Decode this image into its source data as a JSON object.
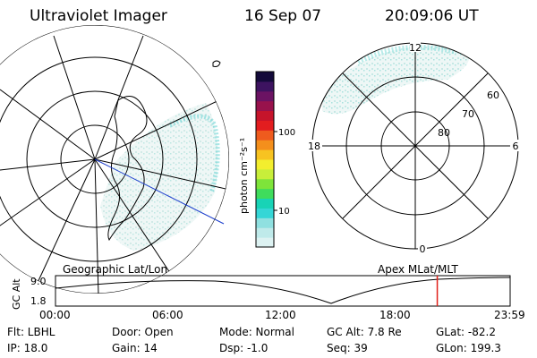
{
  "header": {
    "instrument": "Ultraviolet Imager",
    "date": "16 Sep 07",
    "time": "20:09:06 UT"
  },
  "colorbar": {
    "unit_label": "photon cm⁻²s⁻¹",
    "ticks": [
      "100",
      "10"
    ],
    "colors": [
      "#ddf2f2",
      "#bfeaea",
      "#8fe0e0",
      "#35d6d6",
      "#18d3b6",
      "#3fdc5c",
      "#7ee43a",
      "#c8ee3a",
      "#f3ee2e",
      "#f7c321",
      "#f48f1c",
      "#ef5b1e",
      "#e31d1f",
      "#c6142b",
      "#98124c",
      "#6b1363",
      "#3d1360",
      "#140a3a"
    ]
  },
  "maps": {
    "left_title": "Geographic Lat/Lon",
    "right_title": "Apex  MLat/MLT",
    "right_mlt_labels": {
      "top": "12",
      "left": "18",
      "right": "6",
      "bottom": "0"
    },
    "right_lat_labels": [
      "60",
      "70",
      "80"
    ]
  },
  "altitude_plot": {
    "ylabel": "GC Alt",
    "yticks": [
      "9.0",
      "1.8"
    ],
    "xticks": [
      "00:00",
      "06:00",
      "12:00",
      "18:00",
      "23:59"
    ],
    "current_time_fraction": 0.8397
  },
  "footer": {
    "filter": "Flt: LBHL",
    "ip": "IP: 18.0",
    "door": "Door: Open",
    "gain": "Gain: 14",
    "mode": "Mode: Normal",
    "dsp": "Dsp:   -1.0",
    "gc_alt": "GC Alt: 7.8 Re",
    "seq": "Seq: 39",
    "glat": "GLat: -82.2",
    "glon": "GLon: 199.3"
  }
}
